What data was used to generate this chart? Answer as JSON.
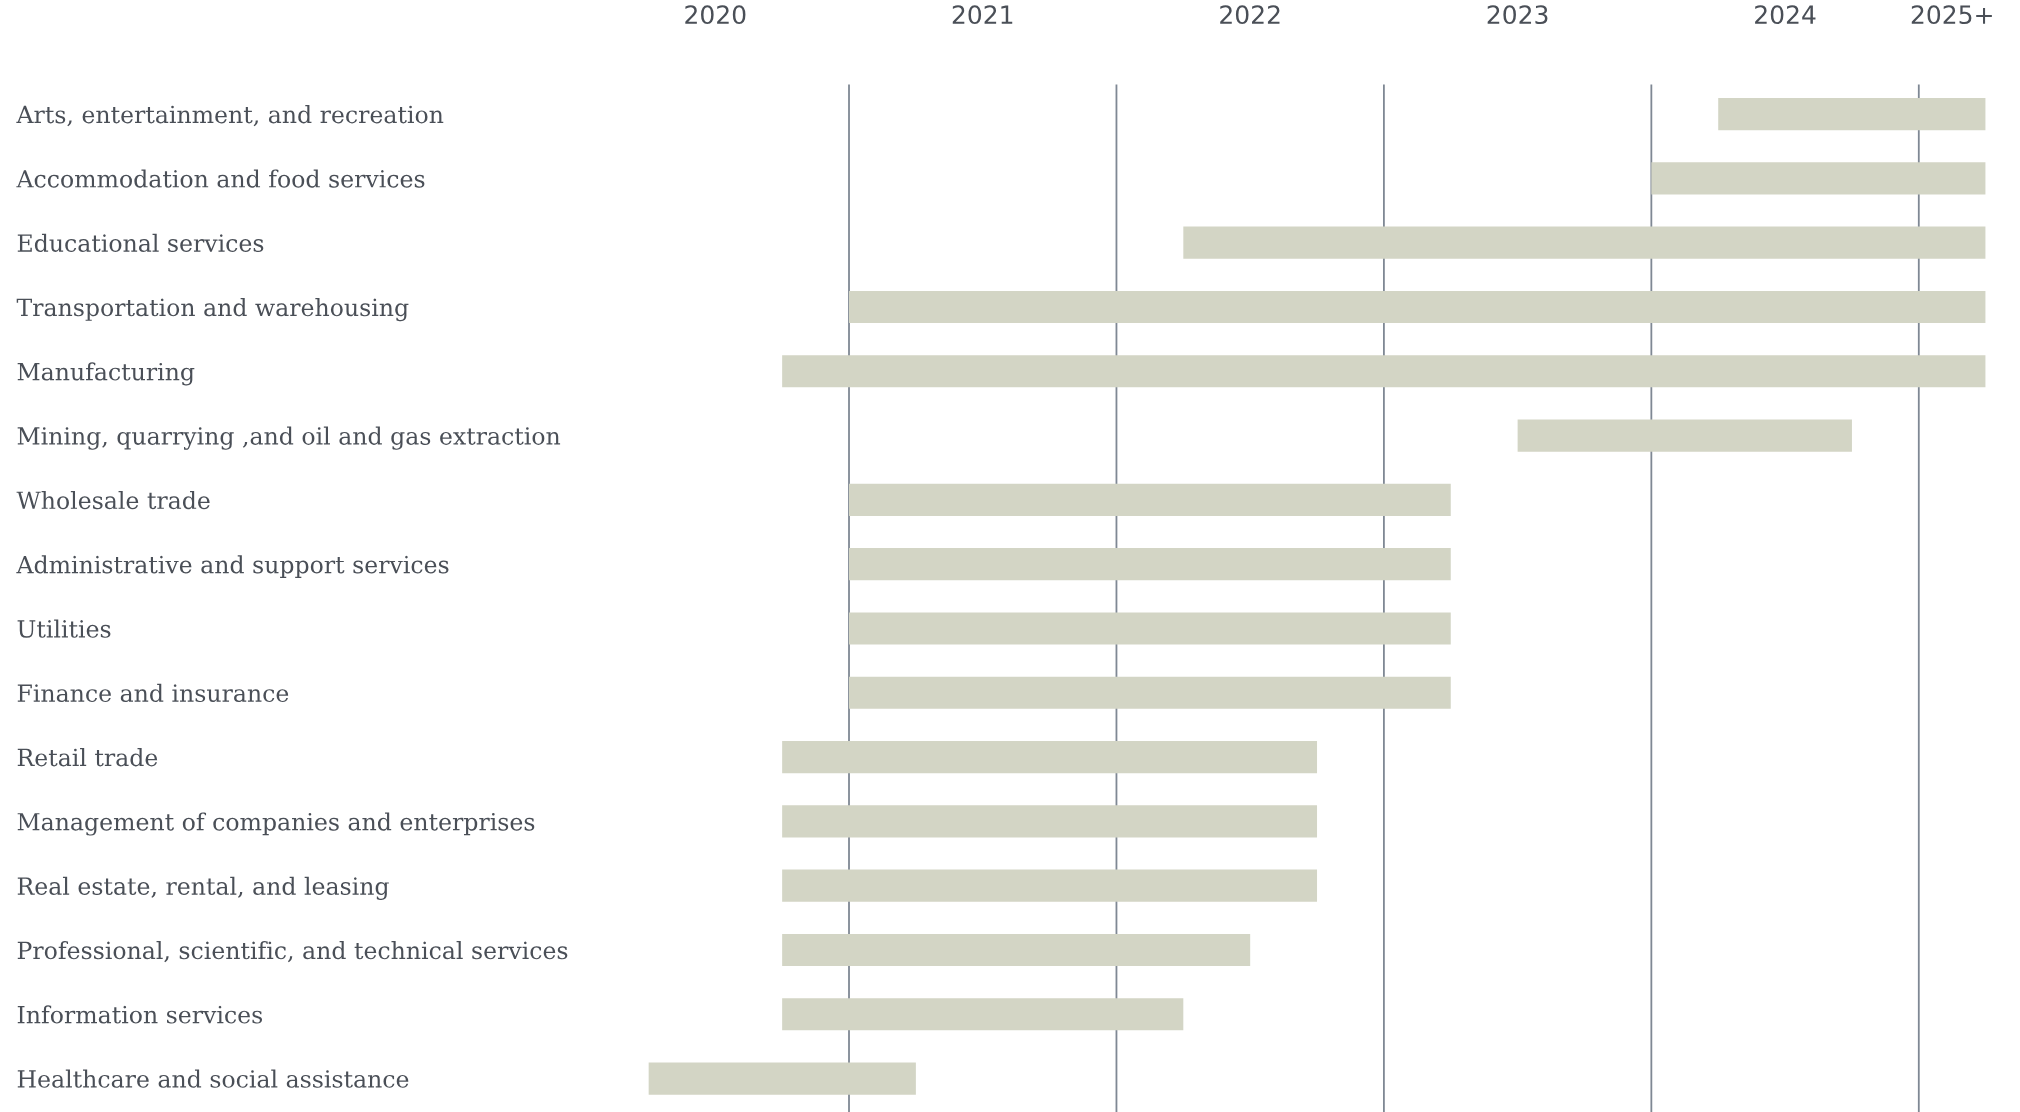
{
  "chart_data": {
    "type": "bar",
    "orientation": "horizontal",
    "categories": [
      "Arts, entertainment, and recreation",
      "Accommodation and food services",
      "Educational services",
      "Transportation and warehousing",
      "Manufacturing",
      "Mining, quarrying ,and oil and gas extraction",
      "Wholesale trade",
      "Administrative and support services",
      "Utilities",
      "Finance and insurance",
      "Retail trade",
      "Management of companies and enterprises",
      "Real estate, rental, and leasing",
      "Professional, scientific, and technical services",
      "Information services",
      "Healthcare and social assistance"
    ],
    "base": [
      2023.75,
      2023.5,
      2021.75,
      2020.5,
      2020.25,
      2023,
      2020.5,
      2020.5,
      2020.5,
      2020.5,
      2020.25,
      2020.25,
      2020.25,
      2020.25,
      2020.25,
      2019.75
    ],
    "values": [
      1,
      1.25,
      3,
      4.25,
      4.5,
      1.25,
      2.25,
      2.25,
      2.25,
      2.25,
      2,
      2,
      2,
      1.75,
      1.5,
      1
    ],
    "color": "#d3d5c5",
    "xlim": [
      2019.75,
      2024.75
    ],
    "xticks": [
      2020,
      2021,
      2022,
      2023,
      2024,
      {
        "value": 2024.625,
        "label": "2025+"
      }
    ],
    "ref_lines": [
      {
        "axis": "x",
        "value": 2020.5,
        "color": "#7f8894"
      },
      {
        "axis": "x",
        "value": 2021.5,
        "color": "#7f8894"
      },
      {
        "axis": "x",
        "value": 2022.5,
        "color": "#7f8894"
      },
      {
        "axis": "x",
        "value": 2023.5,
        "color": "#7f8894"
      },
      {
        "axis": "x",
        "value": 2024.5,
        "color": "#7f8894"
      }
    ]
  }
}
